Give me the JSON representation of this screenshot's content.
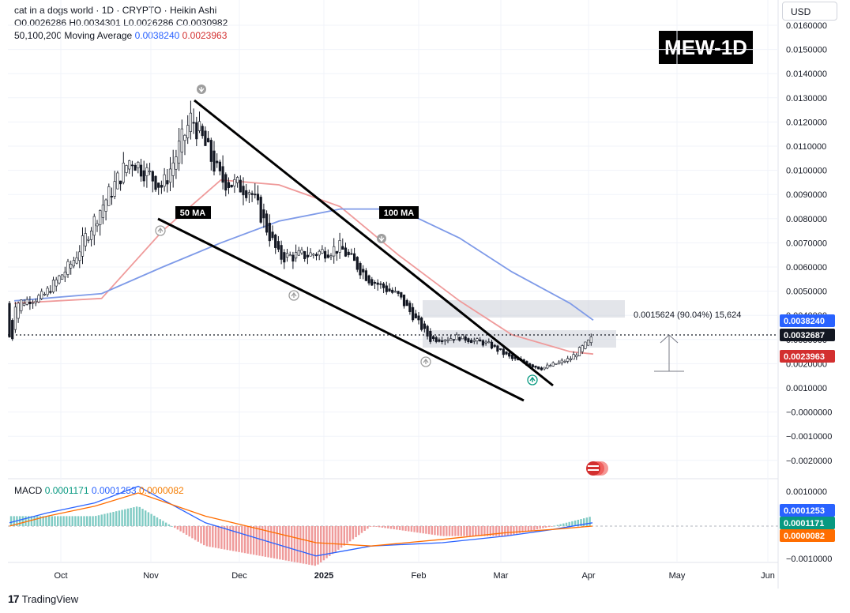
{
  "header": {
    "title": "cat in a dogs world · 1D · CRYPTO · Heikin Ashi",
    "ohlc": "O0.0026286 H0.0034301 L0.0026286 C0.0030982",
    "ma_label": "50,100,200 Moving Average",
    "ma_val1": "0.0038240",
    "ma_val2": "0.0023963"
  },
  "currency_button": "USD",
  "ticker_badge": "MEW-1D",
  "annotations": {
    "ma50": "50 MA",
    "ma100": "100 MA",
    "measure": "0.0015624 (90.04%) 15,624"
  },
  "macd": {
    "label": "MACD",
    "v1": "0.0001171",
    "v2": "0.0001253",
    "v3": "0.0000082"
  },
  "branding": "TradingView",
  "colors": {
    "ma_blue": "#2962ff",
    "ma_red": "#ef5350",
    "macd_orange": "#ff6d00",
    "last_price": "#131722",
    "bull": "#089981"
  },
  "chart_data": {
    "type": "line",
    "title": "cat in a dogs world · 1D · CRYPTO · Heikin Ashi",
    "price_axis": {
      "ticks": [
        "0.0160000",
        "0.0150000",
        "0.0140000",
        "0.0130000",
        "0.0120000",
        "0.0110000",
        "0.0100000",
        "0.0090000",
        "0.0080000",
        "0.0070000",
        "0.0060000",
        "0.0050000",
        "0.0040000",
        "0.0030000",
        "0.0020000",
        "0.0010000",
        "−0.0000000",
        "−0.0010000",
        "−0.0020000"
      ],
      "ylim": [
        -0.0028,
        0.0163
      ]
    },
    "macd_axis": {
      "ticks": [
        "0.0010000",
        "−0.0010000"
      ],
      "ylim": [
        -0.0013,
        0.0013
      ]
    },
    "time_axis": {
      "labels": [
        "Oct",
        "Nov",
        "Dec",
        "2025",
        "Feb",
        "Mar",
        "Apr",
        "May",
        "Jun"
      ]
    },
    "price_labels": [
      {
        "value": "0.0038240",
        "color": "#2962ff"
      },
      {
        "value": "0.0032687",
        "color": "#131722"
      },
      {
        "value": "0.0023963",
        "color": "#d32f2f"
      }
    ],
    "macd_labels": [
      {
        "value": "0.0001253",
        "color": "#2962ff"
      },
      {
        "value": "0.0001171",
        "color": "#089981"
      },
      {
        "value": "0.0000082",
        "color": "#ff6d00"
      }
    ],
    "series": [
      {
        "name": "Price",
        "x": [
          "2024-09-15",
          "2024-09-25",
          "2024-10-05",
          "2024-10-15",
          "2024-10-25",
          "2024-11-05",
          "2024-11-15",
          "2024-11-25",
          "2024-12-05",
          "2024-12-15",
          "2024-12-25",
          "2025-01-05",
          "2025-01-15",
          "2025-01-25",
          "2025-02-05",
          "2025-02-15",
          "2025-02-25",
          "2025-03-05",
          "2025-03-15",
          "2025-03-25",
          "2025-04-02"
        ],
        "values": [
          0.0045,
          0.0048,
          0.0062,
          0.0085,
          0.0105,
          0.0093,
          0.0122,
          0.0096,
          0.0092,
          0.0064,
          0.0065,
          0.0068,
          0.0055,
          0.0048,
          0.003,
          0.0031,
          0.0028,
          0.0022,
          0.0018,
          0.0022,
          0.0031
        ]
      },
      {
        "name": "50 MA",
        "x": [
          "2024-09-15",
          "2024-10-15",
          "2024-11-05",
          "2024-11-25",
          "2024-12-15",
          "2025-01-05",
          "2025-01-25",
          "2025-02-15",
          "2025-03-05",
          "2025-03-25",
          "2025-04-02"
        ],
        "values": [
          0.0045,
          0.0047,
          0.0075,
          0.0096,
          0.0094,
          0.0085,
          0.0065,
          0.0046,
          0.0032,
          0.0025,
          0.0024
        ]
      },
      {
        "name": "100 MA",
        "x": [
          "2024-09-15",
          "2024-10-15",
          "2024-11-05",
          "2024-11-25",
          "2024-12-15",
          "2025-01-05",
          "2025-01-25",
          "2025-02-15",
          "2025-03-05",
          "2025-03-25",
          "2025-04-02"
        ],
        "values": [
          0.0046,
          0.0049,
          0.006,
          0.007,
          0.0079,
          0.0084,
          0.0084,
          0.0072,
          0.0058,
          0.0045,
          0.0038
        ]
      }
    ],
    "macd_series": [
      {
        "name": "MACD",
        "values": [
          0.0001,
          0.0004,
          0.0007,
          0.0012,
          0.0001,
          -0.0009,
          -0.0006,
          -0.0005,
          -0.0003,
          -0.0001,
          0.0001
        ]
      },
      {
        "name": "Signal",
        "values": [
          0.0,
          0.0003,
          0.0006,
          0.001,
          0.0003,
          -0.0005,
          -0.0006,
          -0.0004,
          -0.0002,
          -0.0001,
          0.0
        ]
      }
    ]
  }
}
